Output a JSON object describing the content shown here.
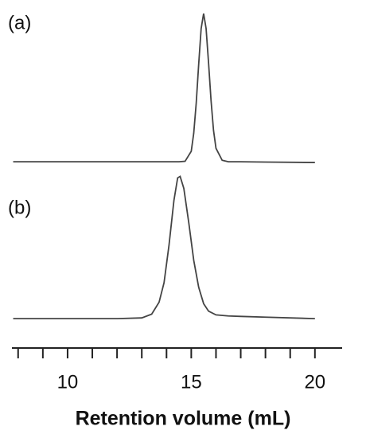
{
  "chart_data": [
    {
      "type": "line",
      "label": "(a)",
      "color": "#444",
      "xlim": [
        7.75,
        21.1
      ],
      "ylim": [
        0,
        100
      ],
      "x": [
        7.8,
        10,
        12,
        14,
        14.5,
        14.75,
        15,
        15.1,
        15.2,
        15.3,
        15.4,
        15.5,
        15.6,
        15.7,
        15.8,
        15.9,
        16,
        16.25,
        16.5,
        17,
        18,
        20
      ],
      "values": [
        1,
        1,
        1,
        1,
        1,
        1.3,
        8,
        20,
        40,
        66,
        90,
        100,
        90,
        67,
        42,
        22,
        10,
        2,
        1,
        1,
        0.8,
        0.5
      ]
    },
    {
      "type": "line",
      "label": "(b)",
      "color": "#444",
      "xlim": [
        7.75,
        21.1
      ],
      "ylim": [
        0,
        100
      ],
      "x": [
        7.8,
        10,
        12,
        13,
        13.4,
        13.7,
        13.9,
        14.1,
        14.3,
        14.45,
        14.55,
        14.7,
        14.9,
        15.1,
        15.3,
        15.5,
        15.7,
        16,
        16.5,
        17,
        18,
        20
      ],
      "values": [
        1,
        1,
        1,
        1.5,
        4,
        12,
        25,
        50,
        80,
        95,
        96,
        88,
        65,
        40,
        22,
        11,
        6,
        3.5,
        2.8,
        2.5,
        2,
        1
      ],
      "xlabel": "Retention volume (mL)",
      "xticks": [
        10,
        15,
        20
      ],
      "xminorticks": [
        8,
        9,
        11,
        12,
        13,
        14,
        16,
        17,
        18,
        19
      ]
    }
  ]
}
